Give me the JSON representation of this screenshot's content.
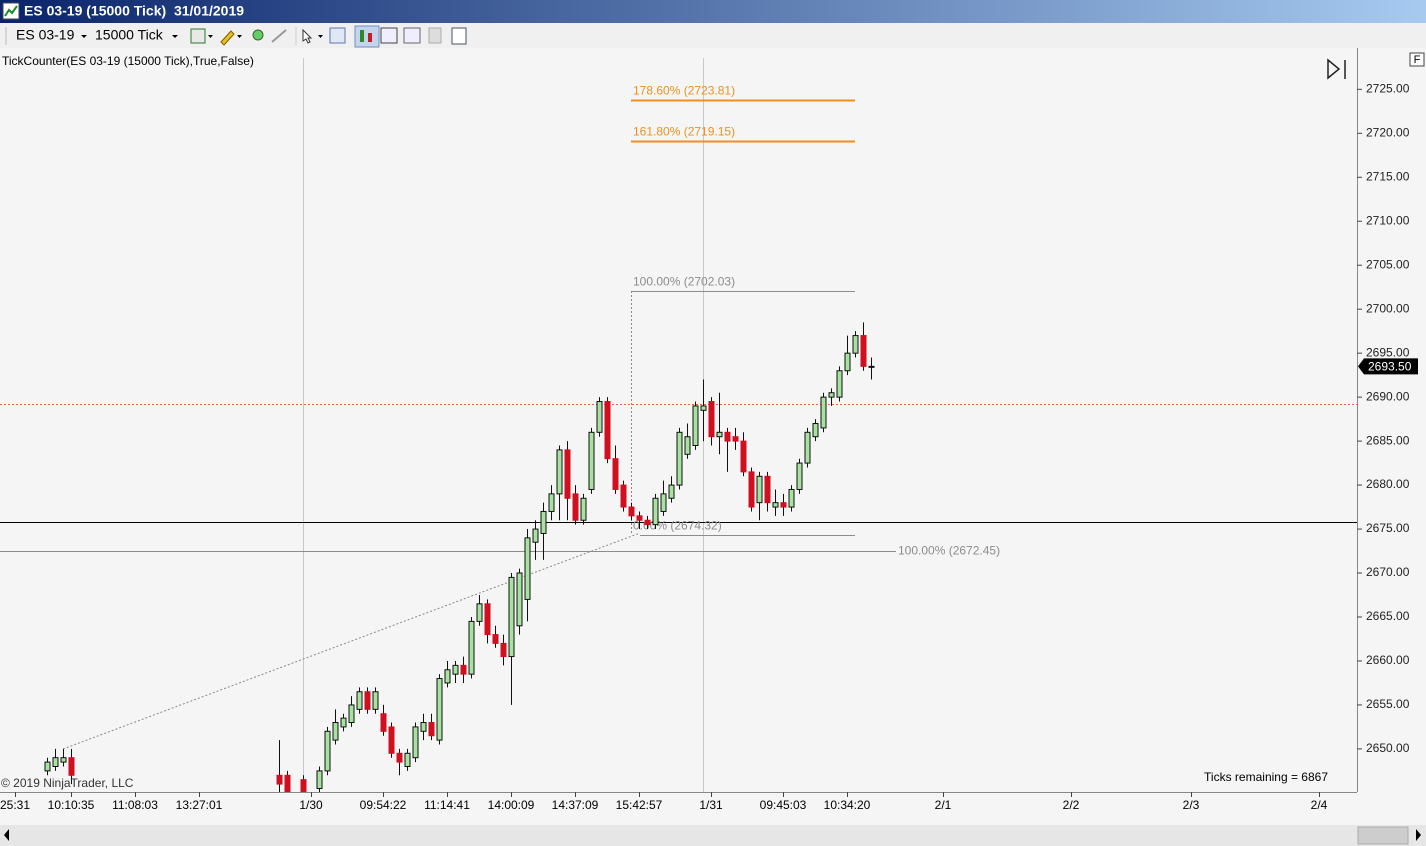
{
  "window": {
    "title": "ES 03-19 (15000 Tick)  31/01/2019"
  },
  "toolbar": {
    "instrument": "ES 03-19",
    "interval": "15000 Tick"
  },
  "corner_button": "F",
  "chart_data": {
    "type": "candlestick",
    "indicator": "TickCounter(ES  03-19 (15000  Tick),True,False)",
    "copyright": "© 2019 NinjaTrader, LLC",
    "ticks_remaining": "Ticks remaining = 6867",
    "up_color": "#a6e3a0",
    "down_color": "#d01020",
    "ylim": [
      2645.1,
      2729.7
    ],
    "yticks": [
      {
        "value": 2650,
        "label": "2650.00"
      },
      {
        "value": 2655,
        "label": "2655.00"
      },
      {
        "value": 2660,
        "label": "2660.00"
      },
      {
        "value": 2665,
        "label": "2665.00"
      },
      {
        "value": 2670,
        "label": "2670.00"
      },
      {
        "value": 2675,
        "label": "2675.00"
      },
      {
        "value": 2680,
        "label": "2680.00"
      },
      {
        "value": 2685,
        "label": "2685.00"
      },
      {
        "value": 2690,
        "label": "2690.00"
      },
      {
        "value": 2695,
        "label": "2695.00"
      },
      {
        "value": 2700,
        "label": "2700.00"
      },
      {
        "value": 2705,
        "label": "2705.00"
      },
      {
        "value": 2710,
        "label": "2710.00"
      },
      {
        "value": 2715,
        "label": "2715.00"
      },
      {
        "value": 2720,
        "label": "2720.00"
      },
      {
        "value": 2725,
        "label": "2725.00"
      }
    ],
    "last_price": {
      "value": 2693.5,
      "label": "2693.50"
    },
    "price_lines": [
      {
        "value": 2675.75,
        "color": "#000000"
      },
      {
        "value": 2689.25,
        "color": "#e8604a"
      }
    ],
    "annotations": [
      {
        "label": "178.60% (2723.81)",
        "value": 2723.81,
        "color": "#f0901e"
      },
      {
        "label": "161.80% (2719.15)",
        "value": 2719.15,
        "color": "#f0901e"
      },
      {
        "label": "100.00% (2702.03)",
        "value": 2702.03,
        "color": "#8c8c8c"
      },
      {
        "label": "0.00% (2674.32)",
        "value": 2674.32,
        "color": "#8c8c8c"
      },
      {
        "label": "100.00% (2672.45)",
        "value": 2672.45,
        "color": "#8c8c8c"
      }
    ],
    "categories": [
      null,
      "25:31",
      null,
      null,
      null,
      null,
      null,
      null,
      "10:10:35",
      null,
      null,
      null,
      null,
      null,
      null,
      null,
      "11:08:03",
      null,
      null,
      null,
      null,
      null,
      null,
      null,
      "13:27:01",
      null,
      null,
      null,
      null,
      null,
      null,
      null,
      null,
      null,
      null,
      null,
      null,
      null,
      "1/30",
      null,
      null,
      null,
      null,
      null,
      null,
      null,
      null,
      "09:54:22",
      null,
      null,
      null,
      null,
      null,
      null,
      null,
      "11:14:41",
      null,
      null,
      null,
      null,
      null,
      null,
      null,
      "14:00:09",
      null,
      null,
      null,
      null,
      null,
      null,
      null,
      "14:37:09",
      null,
      null,
      null,
      null,
      null,
      null,
      null,
      "15:42:57",
      null,
      null,
      null,
      null,
      null,
      null,
      null,
      null,
      "1/31",
      null,
      null,
      null,
      null,
      null,
      null,
      null,
      null,
      "09:45:03",
      null,
      null,
      null,
      null,
      null,
      null,
      null,
      "10:34:20",
      null,
      null,
      null,
      null,
      null,
      null,
      null,
      null,
      null,
      null,
      null,
      "2/1",
      null,
      null,
      null,
      null,
      null,
      null,
      null,
      null,
      null,
      null,
      null,
      null,
      null,
      null,
      null,
      "2/2",
      null,
      null,
      null,
      null,
      null,
      null,
      null,
      null,
      null,
      null,
      null,
      null,
      null,
      null,
      "2/3",
      null,
      null,
      null,
      null,
      null,
      null,
      null,
      null,
      null,
      null,
      null,
      null,
      null,
      null,
      null,
      "2/4",
      null,
      null,
      null
    ],
    "open": [
      null,
      null,
      null,
      null,
      null,
      2647.5,
      2648,
      2648.5,
      2649,
      null,
      null,
      null,
      null,
      null,
      null,
      null,
      null,
      null,
      null,
      null,
      null,
      null,
      null,
      null,
      null,
      null,
      null,
      null,
      null,
      null,
      null,
      null,
      null,
      null,
      2647,
      2647,
      null,
      2646.5,
      null,
      2645.5,
      2647.5,
      2651,
      2652.5,
      2653,
      2654.5,
      2656.5,
      2654.5,
      2654,
      2652.5,
      2649.5,
      2648,
      2649,
      2652,
      2653,
      2651,
      2657.5,
      2658.5,
      2659.5,
      2658.5,
      2664.5,
      2666.5,
      2663,
      2662,
      2660.5,
      2664,
      2667,
      2673.5,
      2674.5,
      2677,
      2679,
      2684,
      2679,
      2676,
      2679.5,
      2686,
      2689.5,
      2683,
      2680,
      2677.5,
      2676.5,
      2676,
      2675.5,
      2677,
      2678.5,
      2680,
      2683.5,
      2684.5,
      2688.5,
      2689.5,
      2685.5,
      2686,
      2685.5,
      2685,
      2681.5,
      2678,
      2681,
      2677.5,
      2678,
      2677.5,
      2679.5,
      2682.5,
      2685.5,
      2686.5,
      2690,
      2690,
      2693,
      2695,
      2697,
      2693.5,
      null,
      null,
      null,
      null,
      null,
      null,
      null,
      null,
      null,
      null,
      null,
      null,
      null,
      null,
      null,
      null,
      null,
      null,
      null,
      null,
      null,
      null,
      null,
      null,
      null,
      null,
      null,
      null,
      null,
      null,
      null,
      null,
      null,
      null,
      null,
      null,
      null,
      null,
      null,
      null,
      null,
      null,
      null,
      null,
      null,
      null,
      null,
      null,
      null,
      null,
      null,
      null,
      null,
      null,
      null,
      null,
      null,
      null,
      null
    ],
    "high": [
      null,
      null,
      null,
      null,
      null,
      2649,
      2650,
      2650,
      2650,
      null,
      null,
      null,
      null,
      null,
      null,
      null,
      null,
      null,
      null,
      null,
      null,
      null,
      null,
      null,
      null,
      null,
      null,
      null,
      null,
      null,
      null,
      null,
      null,
      null,
      2651,
      2647.5,
      null,
      2647,
      null,
      2648,
      2652.5,
      2654.5,
      2654,
      2656,
      2657,
      2657,
      2657,
      2655,
      2653,
      2650,
      2650,
      2653,
      2654,
      2654,
      2658.5,
      2660,
      2660,
      2660.5,
      2665,
      2667.5,
      2667,
      2664,
      2663,
      2670,
      2670.5,
      2675,
      2676,
      2678,
      2680,
      2684.5,
      2685,
      2680,
      2679,
      2686.5,
      2690,
      2690,
      2684.5,
      2680.5,
      2678,
      2677,
      2676.5,
      2679,
      2680.5,
      2681,
      2686.5,
      2687,
      2689.5,
      2692,
      2690,
      2690.5,
      2686.5,
      2686.5,
      2686,
      2682,
      2681.5,
      2681.5,
      2679.5,
      2679,
      2680,
      2683,
      2686.5,
      2687.5,
      2690.5,
      2691,
      2693.5,
      2697,
      2697.5,
      2698.5,
      2694.5,
      null,
      null,
      null,
      null,
      null,
      null,
      null,
      null,
      null,
      null,
      null,
      null,
      null,
      null,
      null,
      null,
      null,
      null,
      null,
      null,
      null,
      null,
      null,
      null,
      null,
      null,
      null,
      null,
      null,
      null,
      null,
      null,
      null,
      null,
      null,
      null,
      null,
      null,
      null,
      null,
      null,
      null,
      null,
      null,
      null,
      null,
      null,
      null,
      null,
      null,
      null,
      null,
      null,
      null,
      null,
      null,
      null,
      null,
      null
    ],
    "low": [
      null,
      null,
      null,
      null,
      null,
      2647,
      2647.5,
      2648,
      2646,
      null,
      null,
      null,
      null,
      null,
      null,
      null,
      null,
      null,
      null,
      null,
      null,
      null,
      null,
      null,
      null,
      null,
      null,
      null,
      null,
      null,
      null,
      null,
      null,
      null,
      2645,
      2645,
      null,
      2645,
      null,
      2645,
      2647,
      2650.5,
      2652,
      2652.5,
      2654,
      2654,
      2654,
      2651.5,
      2649,
      2647,
      2647.5,
      2648.5,
      2651,
      2651,
      2650.5,
      2657,
      2657.5,
      2657.5,
      2658,
      2664,
      2662,
      2661.5,
      2659.5,
      2655,
      2663,
      2664.5,
      2671.5,
      2671.5,
      2676,
      2676,
      2676,
      2675.5,
      2675.5,
      2679,
      2685.5,
      2682.5,
      2679,
      2677,
      2676,
      2675,
      2675,
      2675,
      2676.5,
      2678,
      2679.5,
      2683,
      2684,
      2685,
      2684.5,
      2683.5,
      2681.5,
      2684,
      2681,
      2677,
      2676,
      2677,
      2676.5,
      2676.5,
      2677,
      2679,
      2682,
      2685,
      2686,
      2689,
      2689.5,
      2692.5,
      2694.5,
      2693,
      2692,
      null,
      null,
      null,
      null,
      null,
      null,
      null,
      null,
      null,
      null,
      null,
      null,
      null,
      null,
      null,
      null,
      null,
      null,
      null,
      null,
      null,
      null,
      null,
      null,
      null,
      null,
      null,
      null,
      null,
      null,
      null,
      null,
      null,
      null,
      null,
      null,
      null,
      null,
      null,
      null,
      null,
      null,
      null,
      null,
      null,
      null,
      null,
      null,
      null,
      null,
      null,
      null,
      null,
      null,
      null,
      null,
      null,
      null,
      null
    ],
    "close": [
      null,
      null,
      null,
      null,
      null,
      2648.5,
      2649,
      2649,
      2647,
      null,
      null,
      null,
      null,
      null,
      null,
      null,
      null,
      null,
      null,
      null,
      null,
      null,
      null,
      null,
      null,
      null,
      null,
      null,
      null,
      null,
      null,
      null,
      null,
      null,
      2646,
      2645,
      null,
      2645,
      null,
      2647.5,
      2652,
      2653,
      2653.5,
      2655,
      2656.5,
      2654.5,
      2656.5,
      2652,
      2649.5,
      2648.5,
      2649.5,
      2652.5,
      2653,
      2651.5,
      2658,
      2659,
      2659.5,
      2658.5,
      2664.5,
      2666.5,
      2663,
      2662,
      2660.5,
      2669.5,
      2670,
      2674,
      2675,
      2677,
      2679,
      2684,
      2678.5,
      2676,
      2678.5,
      2686,
      2689.5,
      2683,
      2679.5,
      2677.5,
      2676.5,
      2676,
      2675.5,
      2678.5,
      2679,
      2680,
      2686,
      2685.5,
      2689,
      2689,
      2685.5,
      2686,
      2685,
      2685,
      2681.5,
      2677.5,
      2681,
      2678,
      2678,
      2677.5,
      2679.5,
      2682.5,
      2686,
      2687,
      2690,
      2690.5,
      2693,
      2695,
      2697,
      2693.5,
      2693.5,
      null,
      null,
      null,
      null,
      null,
      null,
      null,
      null,
      null,
      null,
      null,
      null,
      null,
      null,
      null,
      null,
      null,
      null,
      null,
      null,
      null,
      null,
      null,
      null,
      null,
      null,
      null,
      null,
      null,
      null,
      null,
      null,
      null,
      null,
      null,
      null,
      null,
      null,
      null,
      null,
      null,
      null,
      null,
      null,
      null,
      null,
      null,
      null,
      null,
      null,
      null,
      null,
      null,
      null,
      null,
      null,
      null,
      null,
      null
    ]
  }
}
